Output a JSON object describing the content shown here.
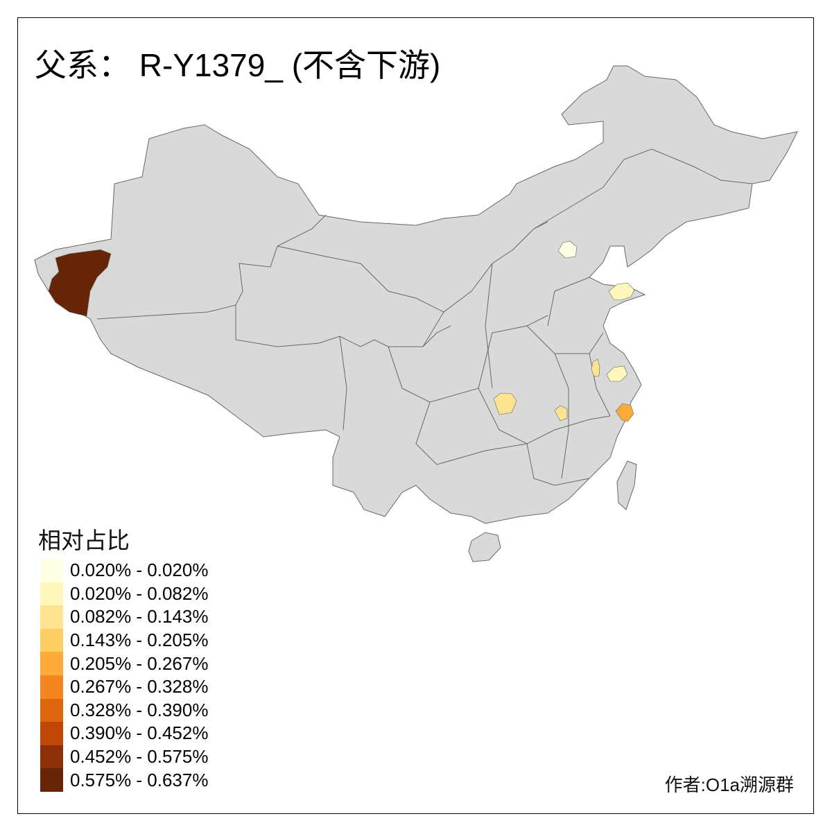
{
  "title": "父系： R-Y1379_ (不含下游)",
  "legend": {
    "title": "相对占比",
    "items": [
      {
        "label": "0.020% - 0.020%",
        "color": "#ffffe5"
      },
      {
        "label": "0.020% - 0.082%",
        "color": "#fff7bc"
      },
      {
        "label": "0.082% - 0.143%",
        "color": "#fee391"
      },
      {
        "label": "0.143% - 0.205%",
        "color": "#fece65"
      },
      {
        "label": "0.205% - 0.267%",
        "color": "#feab3a"
      },
      {
        "label": "0.267% - 0.328%",
        "color": "#f3861f"
      },
      {
        "label": "0.328% - 0.390%",
        "color": "#e0650f"
      },
      {
        "label": "0.390% - 0.452%",
        "color": "#bf4605"
      },
      {
        "label": "0.452% - 0.575%",
        "color": "#8c300a"
      },
      {
        "label": "0.575% - 0.637%",
        "color": "#662506"
      }
    ]
  },
  "map": {
    "base_color": "#d9d9d9",
    "border_color": "#666666",
    "highlighted_regions": [
      {
        "region": "xinjiang-west",
        "class": 9
      },
      {
        "region": "beijing",
        "class": 0
      },
      {
        "region": "shandong-east",
        "class": 1
      },
      {
        "region": "anhui-strip",
        "class": 2
      },
      {
        "region": "anhui-south",
        "class": 1
      },
      {
        "region": "hubei-west",
        "class": 2
      },
      {
        "region": "hunan-jiangxi",
        "class": 2
      },
      {
        "region": "zhejiang",
        "class": 4
      }
    ]
  },
  "author": "作者:O1a溯源群"
}
